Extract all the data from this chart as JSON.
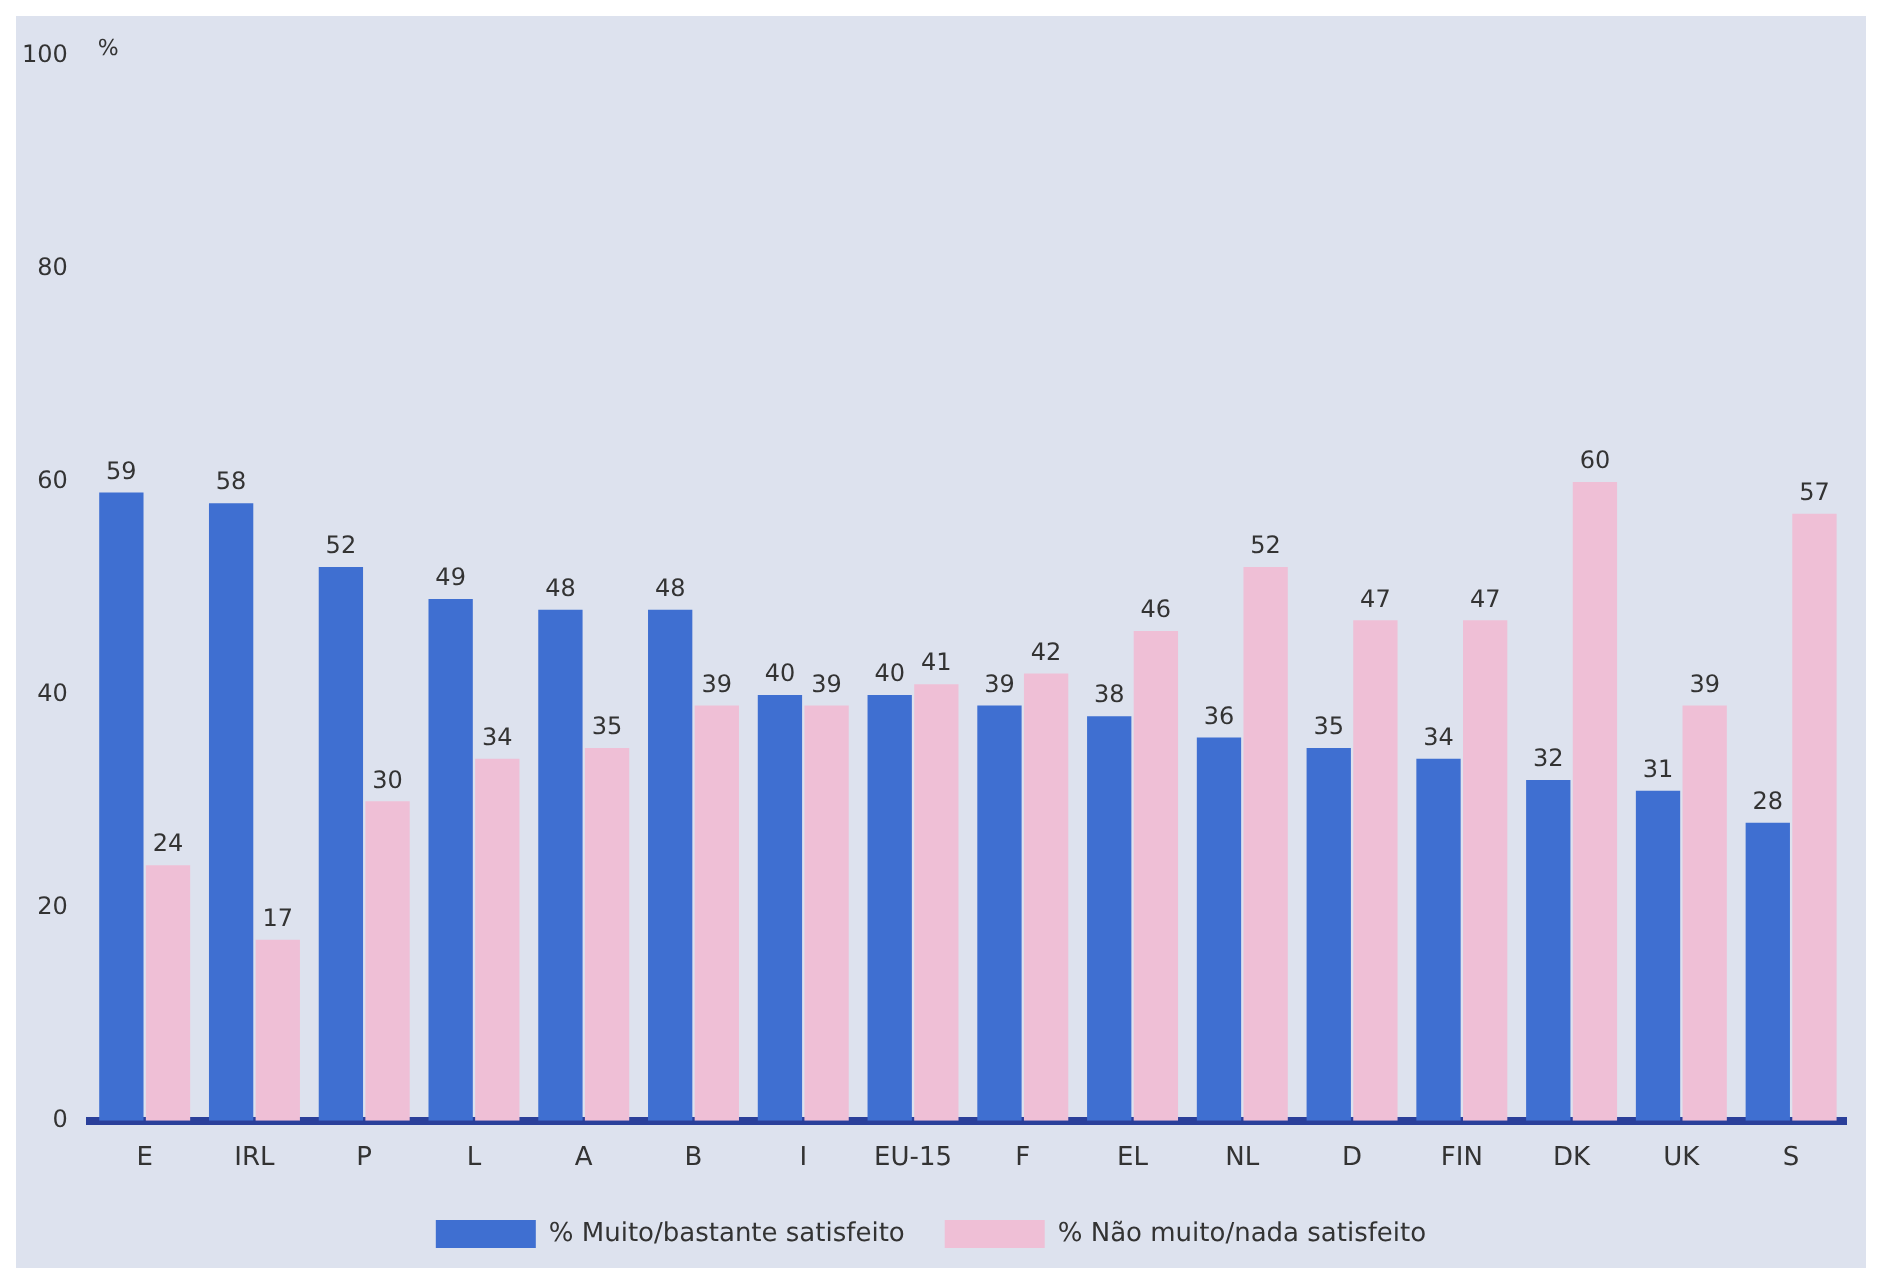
{
  "chart_data": {
    "type": "bar",
    "ylabel": "%",
    "categories": [
      "E",
      "IRL",
      "P",
      "L",
      "A",
      "B",
      "I",
      "EU-15",
      "F",
      "EL",
      "NL",
      "D",
      "FIN",
      "DK",
      "UK",
      "S"
    ],
    "series": [
      {
        "name": "% Muito/bastante satisfeito",
        "color": "#3f6fd1",
        "values": [
          59,
          58,
          52,
          49,
          48,
          48,
          40,
          40,
          39,
          38,
          36,
          35,
          34,
          32,
          31,
          28
        ]
      },
      {
        "name": "% Não muito/nada satisfeito",
        "color": "#efbfd6",
        "values": [
          24,
          17,
          30,
          34,
          35,
          39,
          39,
          41,
          42,
          46,
          52,
          47,
          47,
          60,
          39,
          57
        ]
      }
    ],
    "ylim": [
      0,
      100
    ],
    "yticks": [
      0,
      20,
      40,
      60,
      80,
      100
    ],
    "grid": false,
    "legend": "bottom",
    "data_labels": true
  }
}
